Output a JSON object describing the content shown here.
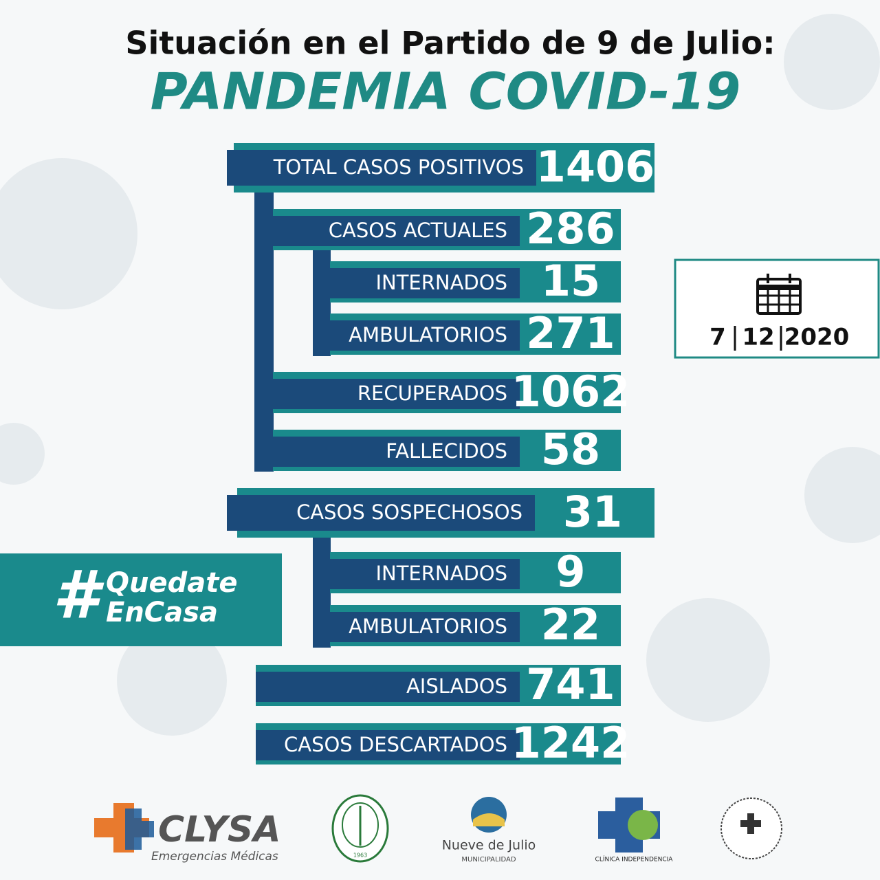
{
  "header": {
    "title": "Situación en el Partido de 9 de Julio:",
    "subtitle": "PANDEMIA COVID-19"
  },
  "stats": [
    {
      "label": "TOTAL CASOS POSITIVOS",
      "value": 1406
    },
    {
      "label": "CASOS ACTUALES",
      "value": 286
    },
    {
      "label": "INTERNADOS",
      "value": 15
    },
    {
      "label": "AMBULATORIOS",
      "value": 271
    },
    {
      "label": "RECUPERADOS",
      "value": 1062
    },
    {
      "label": "FALLECIDOS",
      "value": 58
    },
    {
      "label": "CASOS SOSPECHOSOS",
      "value": 31
    },
    {
      "label": "INTERNADOS",
      "value": 9
    },
    {
      "label": "AMBULATORIOS",
      "value": 22
    },
    {
      "label": "AISLADOS",
      "value": 741
    },
    {
      "label": "CASOS DESCARTADOS",
      "value": 1242
    }
  ],
  "date": {
    "day": "7",
    "month": "12",
    "year": "2020"
  },
  "hashtag": {
    "symbol": "#",
    "line1": "Quedate",
    "line2": "EnCasa"
  },
  "logos": {
    "clysa": "CLYSA",
    "clysa_tagline": "Emergencias Médicas",
    "circulo_year": "1963",
    "municipio": "Nueve de Julio",
    "municipio_sub": "MUNICIPALIDAD",
    "clinica": "CLÍNICA INDEPENDENCIA"
  }
}
